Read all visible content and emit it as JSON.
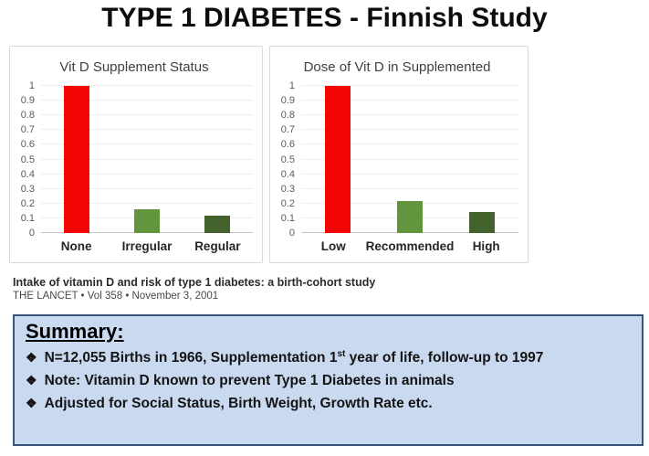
{
  "title": "TYPE 1 DIABETES - Finnish Study",
  "chart_data": [
    {
      "type": "bar",
      "title": "Vit D Supplement Status",
      "categories": [
        "None",
        "Irregular",
        "Regular"
      ],
      "values": [
        1.0,
        0.16,
        0.12
      ],
      "bar_colors": [
        "#f40606",
        "#63953e",
        "#44622c"
      ],
      "ylim": [
        0,
        1
      ],
      "ytick_labels": [
        "1",
        "0.9",
        "0.8",
        "0.7",
        "0.6",
        "0.5",
        "0.4",
        "0.3",
        "0.2",
        "0.1",
        "0"
      ],
      "grid": true,
      "legend": false,
      "xlabel": "",
      "ylabel": ""
    },
    {
      "type": "bar",
      "title": "Dose of Vit D in Supplemented",
      "categories": [
        "Low",
        "Recommended",
        "High"
      ],
      "values": [
        1.0,
        0.22,
        0.14
      ],
      "bar_colors": [
        "#f40606",
        "#63953e",
        "#44622c"
      ],
      "ylim": [
        0,
        1
      ],
      "ytick_labels": [
        "1",
        "0.9",
        "0.8",
        "0.7",
        "0.6",
        "0.5",
        "0.4",
        "0.3",
        "0.2",
        "0.1",
        "0"
      ],
      "grid": true,
      "legend": false,
      "xlabel": "",
      "ylabel": ""
    }
  ],
  "citation": {
    "line1": "Intake of vitamin D and risk of type 1 diabetes: a birth-cohort study",
    "line2": "THE LANCET • Vol 358 • November 3, 2001"
  },
  "summary": {
    "heading": "Summary:",
    "bullet_glyph": "❖",
    "bullets": [
      {
        "pre": "N=12,055 Births in 1966, Supplementation 1",
        "sup": "st",
        "post": " year of life, follow-up to 1997"
      },
      {
        "pre": "Note: Vitamin D known to prevent Type 1 Diabetes in animals",
        "sup": "",
        "post": ""
      },
      {
        "pre": "Adjusted for Social Status, Birth Weight, Growth Rate etc.",
        "sup": "",
        "post": ""
      }
    ],
    "bg_color": "#c9daf0",
    "border_color": "#3a5377"
  }
}
